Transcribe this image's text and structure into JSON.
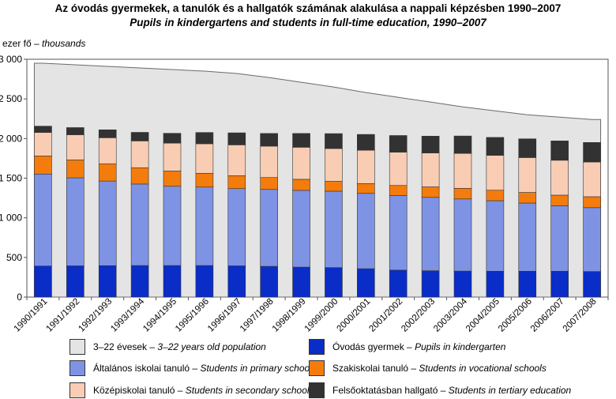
{
  "title_hu": "Az óvodás gyermekek, a tanulók és a hallgatók számának alakulása a nappali képzésben 1990–2007",
  "title_en": "Pupils in kindergartens and students in full-time education, 1990–2007",
  "y_unit_hu": "ezer fő –",
  "y_unit_en": "thousands",
  "colors": {
    "population": "#e4e4e4",
    "kindergarten": "#0a2dc8",
    "primary": "#7f93e4",
    "vocational": "#f47c0c",
    "secondary": "#f9cdb4",
    "tertiary": "#323232"
  },
  "legend": [
    {
      "key": "population",
      "hu": "3–22 évesek –",
      "en": "3–22 years old population"
    },
    {
      "key": "kindergarten",
      "hu": "Óvodás gyermek –",
      "en": "Pupils in kindergarten"
    },
    {
      "key": "primary",
      "hu": "Általános iskolai tanuló –",
      "en": "Students in primary schools"
    },
    {
      "key": "vocational",
      "hu": "Szakiskolai tanuló –",
      "en": "Students in vocational schools"
    },
    {
      "key": "secondary",
      "hu": "Középiskolai tanuló –",
      "en": "Students in secondary schools"
    },
    {
      "key": "tertiary",
      "hu": "Felsőoktatásban hallgató –",
      "en": "Students in tertiary education"
    }
  ],
  "chart_data": {
    "type": "bar",
    "stacked": true,
    "ylim": [
      0,
      3000
    ],
    "yticks": [
      0,
      500,
      1000,
      1500,
      2000,
      2500,
      3000
    ],
    "ytick_labels": [
      "0",
      "500",
      "1 000",
      "1 500",
      "2 000",
      "2 500",
      "3 000"
    ],
    "categories": [
      "1990/1991",
      "1991/1992",
      "1992/1993",
      "1993/1994",
      "1994/1995",
      "1995/1996",
      "1996/1997",
      "1997/1998",
      "1998/1999",
      "1999/2000",
      "2000/2001",
      "2001/2002",
      "2002/2003",
      "2003/2004",
      "2004/2005",
      "2005/2006",
      "2006/2007",
      "2007/2008"
    ],
    "series": [
      {
        "key": "kindergarten",
        "values": [
          392,
          394,
          396,
          398,
          398,
          398,
          394,
          388,
          378,
          372,
          358,
          340,
          332,
          328,
          326,
          326,
          326,
          322
        ]
      },
      {
        "key": "primary",
        "values": [
          1160,
          1110,
          1068,
          1028,
          1000,
          990,
          974,
          970,
          968,
          964,
          950,
          942,
          926,
          910,
          890,
          860,
          826,
          806
        ]
      },
      {
        "key": "vocational",
        "values": [
          228,
          226,
          218,
          206,
          192,
          174,
          164,
          150,
          140,
          124,
          124,
          126,
          132,
          134,
          132,
          134,
          134,
          138
        ]
      },
      {
        "key": "secondary",
        "values": [
          296,
          318,
          328,
          338,
          352,
          372,
          388,
          396,
          404,
          414,
          420,
          420,
          428,
          440,
          440,
          440,
          440,
          438
        ]
      },
      {
        "key": "tertiary",
        "values": [
          80,
          90,
          100,
          108,
          124,
          142,
          152,
          160,
          174,
          188,
          200,
          210,
          212,
          220,
          226,
          236,
          244,
          246
        ]
      }
    ],
    "population": {
      "key": "population",
      "values": [
        2950,
        2930,
        2910,
        2890,
        2870,
        2850,
        2820,
        2770,
        2710,
        2650,
        2580,
        2520,
        2460,
        2400,
        2350,
        2300,
        2270,
        2240
      ]
    }
  }
}
